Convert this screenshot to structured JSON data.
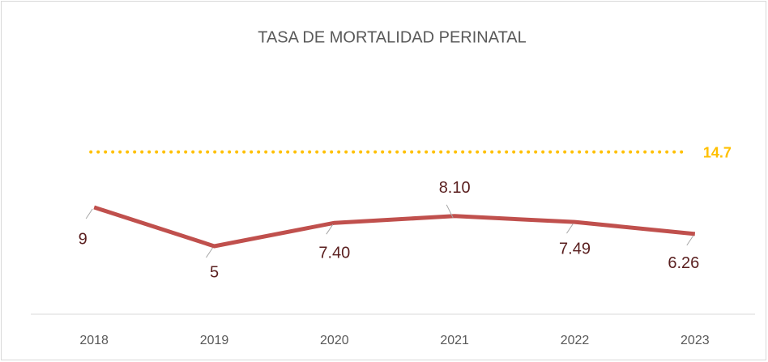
{
  "chart_data": {
    "type": "line",
    "title": "TASA DE MORTALIDAD  PERINATAL",
    "categories": [
      "2018",
      "2019",
      "2020",
      "2021",
      "2022",
      "2023"
    ],
    "series": [
      {
        "color": "#c0504d",
        "values": [
          9,
          5,
          7.4,
          8.1,
          7.49,
          6.26
        ],
        "value_labels": [
          "9",
          "5",
          "7.40",
          "8.10",
          "7.49",
          "6.26"
        ]
      }
    ],
    "reference_line": {
      "value": 14.7,
      "color": "#ffc000",
      "style": "dotted"
    },
    "ylim": [
      -2,
      17
    ]
  }
}
